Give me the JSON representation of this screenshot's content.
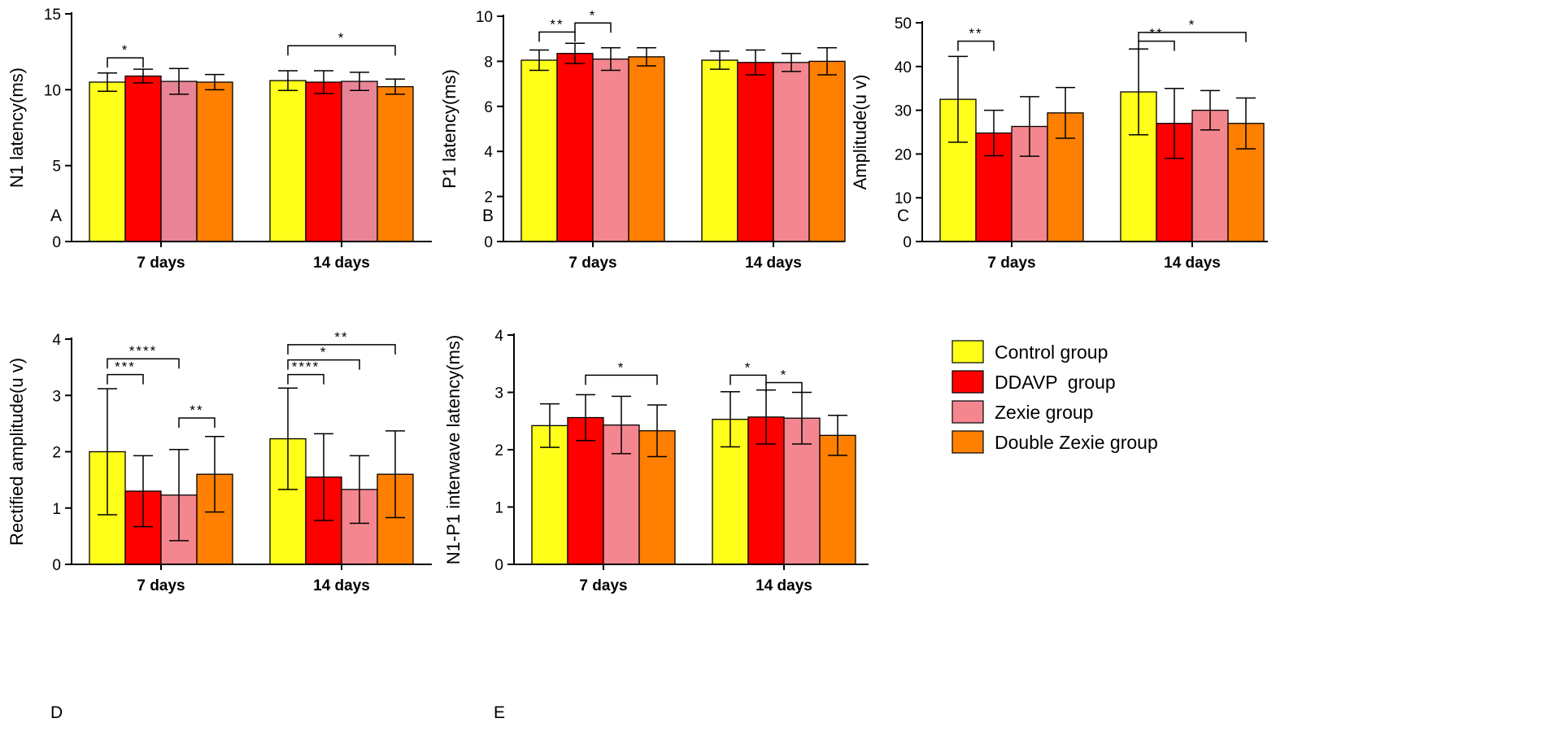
{
  "legend": [
    {
      "name": "Control group",
      "color": "#ffff1a"
    },
    {
      "name": "DDAVP  group",
      "color": "#ff0000"
    },
    {
      "name": "Zexie group",
      "color": "#f4868f"
    },
    {
      "name": "Double Zexie group",
      "color": "#ff8000"
    }
  ],
  "chart_data": [
    {
      "panel": "A",
      "type": "bar",
      "ylabel": "N1 latency(ms)",
      "ylim": [
        0,
        15
      ],
      "yticks": [
        0,
        5,
        10,
        15
      ],
      "categories": [
        "7 days",
        "14 days"
      ],
      "series": [
        {
          "name": "Control group",
          "color": "#ffff1a",
          "values": [
            10.5,
            10.6
          ],
          "errors": [
            0.6,
            0.65
          ]
        },
        {
          "name": "DDAVP  group",
          "color": "#ff0000",
          "values": [
            10.9,
            10.5
          ],
          "errors": [
            0.45,
            0.75
          ]
        },
        {
          "name": "Zexie group",
          "color": "#e98496",
          "values": [
            10.55,
            10.55
          ],
          "errors": [
            0.85,
            0.6
          ]
        },
        {
          "name": "Double Zexie group",
          "color": "#ff8000",
          "values": [
            10.5,
            10.2
          ],
          "errors": [
            0.5,
            0.5
          ]
        }
      ],
      "significance": [
        {
          "category": 0,
          "from": 0,
          "to": 1,
          "level": 12.1,
          "label": "*"
        },
        {
          "category": 1,
          "from": 0,
          "to": 3,
          "level": 12.9,
          "label": "*"
        }
      ]
    },
    {
      "panel": "B",
      "type": "bar",
      "ylabel": "P1 latency(ms)",
      "ylim": [
        0,
        10
      ],
      "yticks": [
        0,
        2,
        4,
        6,
        8,
        10
      ],
      "categories": [
        "7 days",
        "14 days"
      ],
      "series": [
        {
          "name": "Control group",
          "color": "#ffff1a",
          "values": [
            8.05,
            8.05
          ],
          "errors": [
            0.45,
            0.4
          ]
        },
        {
          "name": "DDAVP  group",
          "color": "#ff0000",
          "values": [
            8.35,
            7.95
          ],
          "errors": [
            0.45,
            0.55
          ]
        },
        {
          "name": "Zexie group",
          "color": "#f4868f",
          "values": [
            8.1,
            7.95
          ],
          "errors": [
            0.5,
            0.4
          ]
        },
        {
          "name": "Double Zexie group",
          "color": "#ff8000",
          "values": [
            8.2,
            8.0
          ],
          "errors": [
            0.4,
            0.6
          ]
        }
      ],
      "significance": [
        {
          "category": 0,
          "from": 0,
          "to": 1,
          "level": 9.3,
          "label": "**"
        },
        {
          "category": 0,
          "from": 1,
          "to": 2,
          "level": 9.7,
          "label": "*"
        }
      ]
    },
    {
      "panel": "C",
      "type": "bar",
      "ylabel": "Amplitude(u v)",
      "ylim": [
        0,
        50
      ],
      "yticks": [
        0,
        10,
        20,
        30,
        40,
        50
      ],
      "categories": [
        "7 days",
        "14 days"
      ],
      "series": [
        {
          "name": "Control group",
          "color": "#ffff1a",
          "values": [
            32.5,
            34.2
          ],
          "errors": [
            9.8,
            9.8
          ]
        },
        {
          "name": "DDAVP  group",
          "color": "#ff0000",
          "values": [
            24.8,
            27.0
          ],
          "errors": [
            5.2,
            8.0
          ]
        },
        {
          "name": "Zexie group",
          "color": "#f4868f",
          "values": [
            26.3,
            30.0
          ],
          "errors": [
            6.8,
            4.5
          ]
        },
        {
          "name": "Double Zexie group",
          "color": "#ff8000",
          "values": [
            29.4,
            27.0
          ],
          "errors": [
            5.8,
            5.8
          ]
        }
      ],
      "significance": [
        {
          "category": 0,
          "from": 0,
          "to": 1,
          "level": 45.8,
          "label": "**"
        },
        {
          "category": 1,
          "from": 0,
          "to": 1,
          "level": 45.8,
          "label": "**"
        },
        {
          "category": 1,
          "from": 0,
          "to": 3,
          "level": 47.8,
          "label": "*"
        }
      ]
    },
    {
      "panel": "D",
      "type": "bar",
      "ylabel": "Rectified amplitude(u v)",
      "ylim": [
        0,
        4
      ],
      "yticks": [
        0,
        1,
        2,
        3,
        4
      ],
      "categories": [
        "7 days",
        "14 days"
      ],
      "series": [
        {
          "name": "Control group",
          "color": "#ffff1a",
          "values": [
            2.0,
            2.23
          ],
          "errors": [
            1.12,
            0.9
          ]
        },
        {
          "name": "DDAVP  group",
          "color": "#ff0000",
          "values": [
            1.3,
            1.55
          ],
          "errors": [
            0.63,
            0.77
          ]
        },
        {
          "name": "Zexie group",
          "color": "#f4868f",
          "values": [
            1.23,
            1.33
          ],
          "errors": [
            0.81,
            0.6
          ]
        },
        {
          "name": "Double Zexie group",
          "color": "#ff8000",
          "values": [
            1.6,
            1.6
          ],
          "errors": [
            0.67,
            0.77
          ]
        }
      ],
      "significance": [
        {
          "category": 0,
          "from": 0,
          "to": 1,
          "level": 3.37,
          "label": "***"
        },
        {
          "category": 0,
          "from": 0,
          "to": 2,
          "level": 3.65,
          "label": "****"
        },
        {
          "category": 0,
          "from": 2,
          "to": 3,
          "level": 2.6,
          "label": "**"
        },
        {
          "category": 1,
          "from": 0,
          "to": 1,
          "level": 3.37,
          "label": "****"
        },
        {
          "category": 1,
          "from": 0,
          "to": 2,
          "level": 3.63,
          "label": "*"
        },
        {
          "category": 1,
          "from": 0,
          "to": 3,
          "level": 3.9,
          "label": "**"
        }
      ]
    },
    {
      "panel": "E",
      "type": "bar",
      "ylabel": "N1-P1 interwave latency(ms)",
      "ylim": [
        0,
        4
      ],
      "yticks": [
        0,
        1,
        2,
        3,
        4
      ],
      "categories": [
        "7 days",
        "14 days"
      ],
      "series": [
        {
          "name": "Control group",
          "color": "#ffff1a",
          "values": [
            2.42,
            2.53
          ],
          "errors": [
            0.38,
            0.48
          ]
        },
        {
          "name": "DDAVP  group",
          "color": "#ff0000",
          "values": [
            2.56,
            2.57
          ],
          "errors": [
            0.4,
            0.47
          ]
        },
        {
          "name": "Zexie group",
          "color": "#f4868f",
          "values": [
            2.43,
            2.55
          ],
          "errors": [
            0.5,
            0.45
          ]
        },
        {
          "name": "Double Zexie group",
          "color": "#ff8000",
          "values": [
            2.33,
            2.25
          ],
          "errors": [
            0.45,
            0.35
          ]
        }
      ],
      "significance": [
        {
          "category": 0,
          "from": 1,
          "to": 3,
          "level": 3.3,
          "label": "*"
        },
        {
          "category": 1,
          "from": 0,
          "to": 1,
          "level": 3.3,
          "label": "*"
        },
        {
          "category": 1,
          "from": 1,
          "to": 2,
          "level": 3.17,
          "label": "*"
        }
      ]
    }
  ]
}
